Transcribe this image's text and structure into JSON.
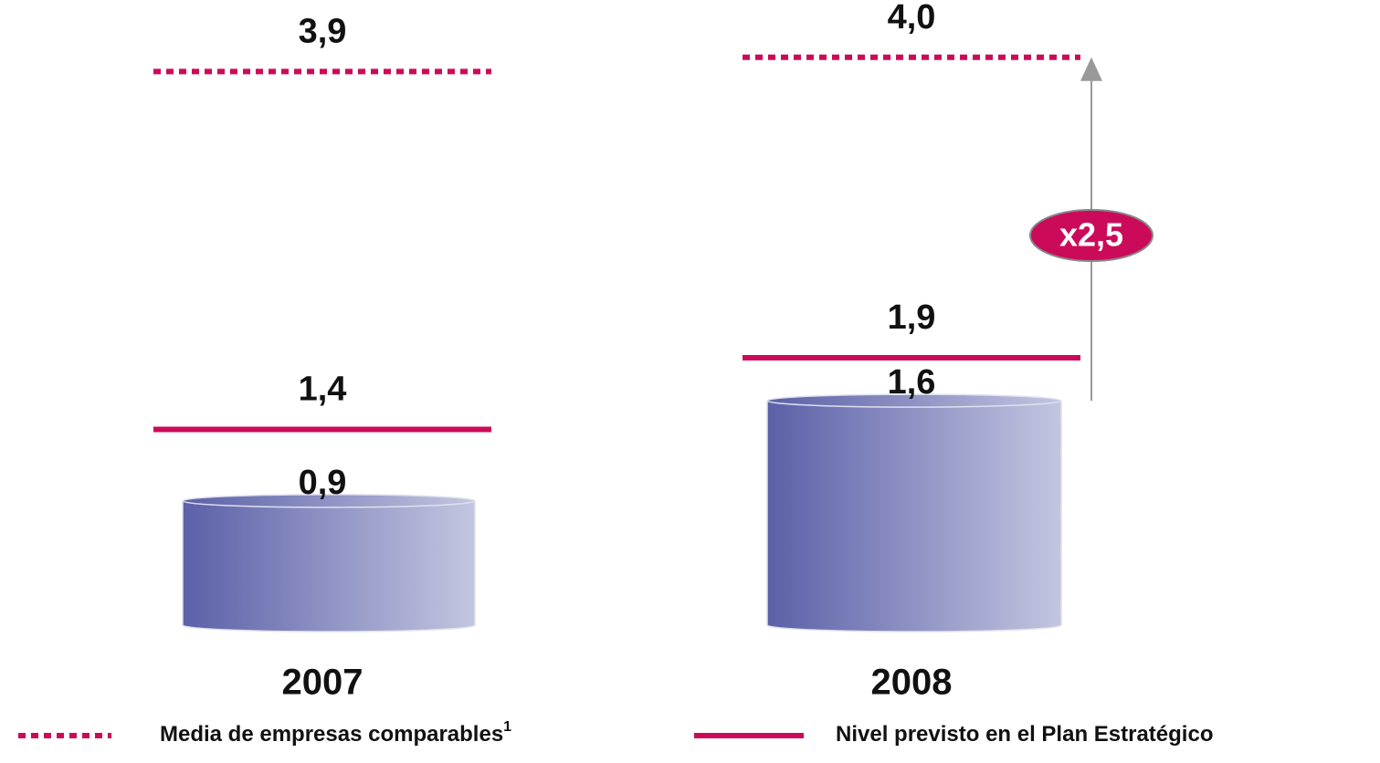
{
  "chart_data": {
    "type": "bar",
    "categories": [
      "2007",
      "2008"
    ],
    "ylim": [
      0,
      4.4
    ],
    "series": [
      {
        "style": "cylinder",
        "color": "#5b60a8",
        "values": [
          0.9,
          1.6
        ],
        "value_labels": [
          "0,9",
          "1,6"
        ]
      },
      {
        "name": "Nivel previsto en el Plan Estratégico",
        "style": "solid",
        "color": "#cc0a5a",
        "values": [
          1.4,
          1.9
        ],
        "value_labels": [
          "1,4",
          "1,9"
        ]
      },
      {
        "name": "Media de empresas comparables",
        "name_superscript": "1",
        "style": "dotted",
        "color": "#cc0a5a",
        "values": [
          3.9,
          4.0
        ],
        "value_labels": [
          "3,9",
          "4,0"
        ]
      }
    ],
    "annotation": "x2,5"
  }
}
